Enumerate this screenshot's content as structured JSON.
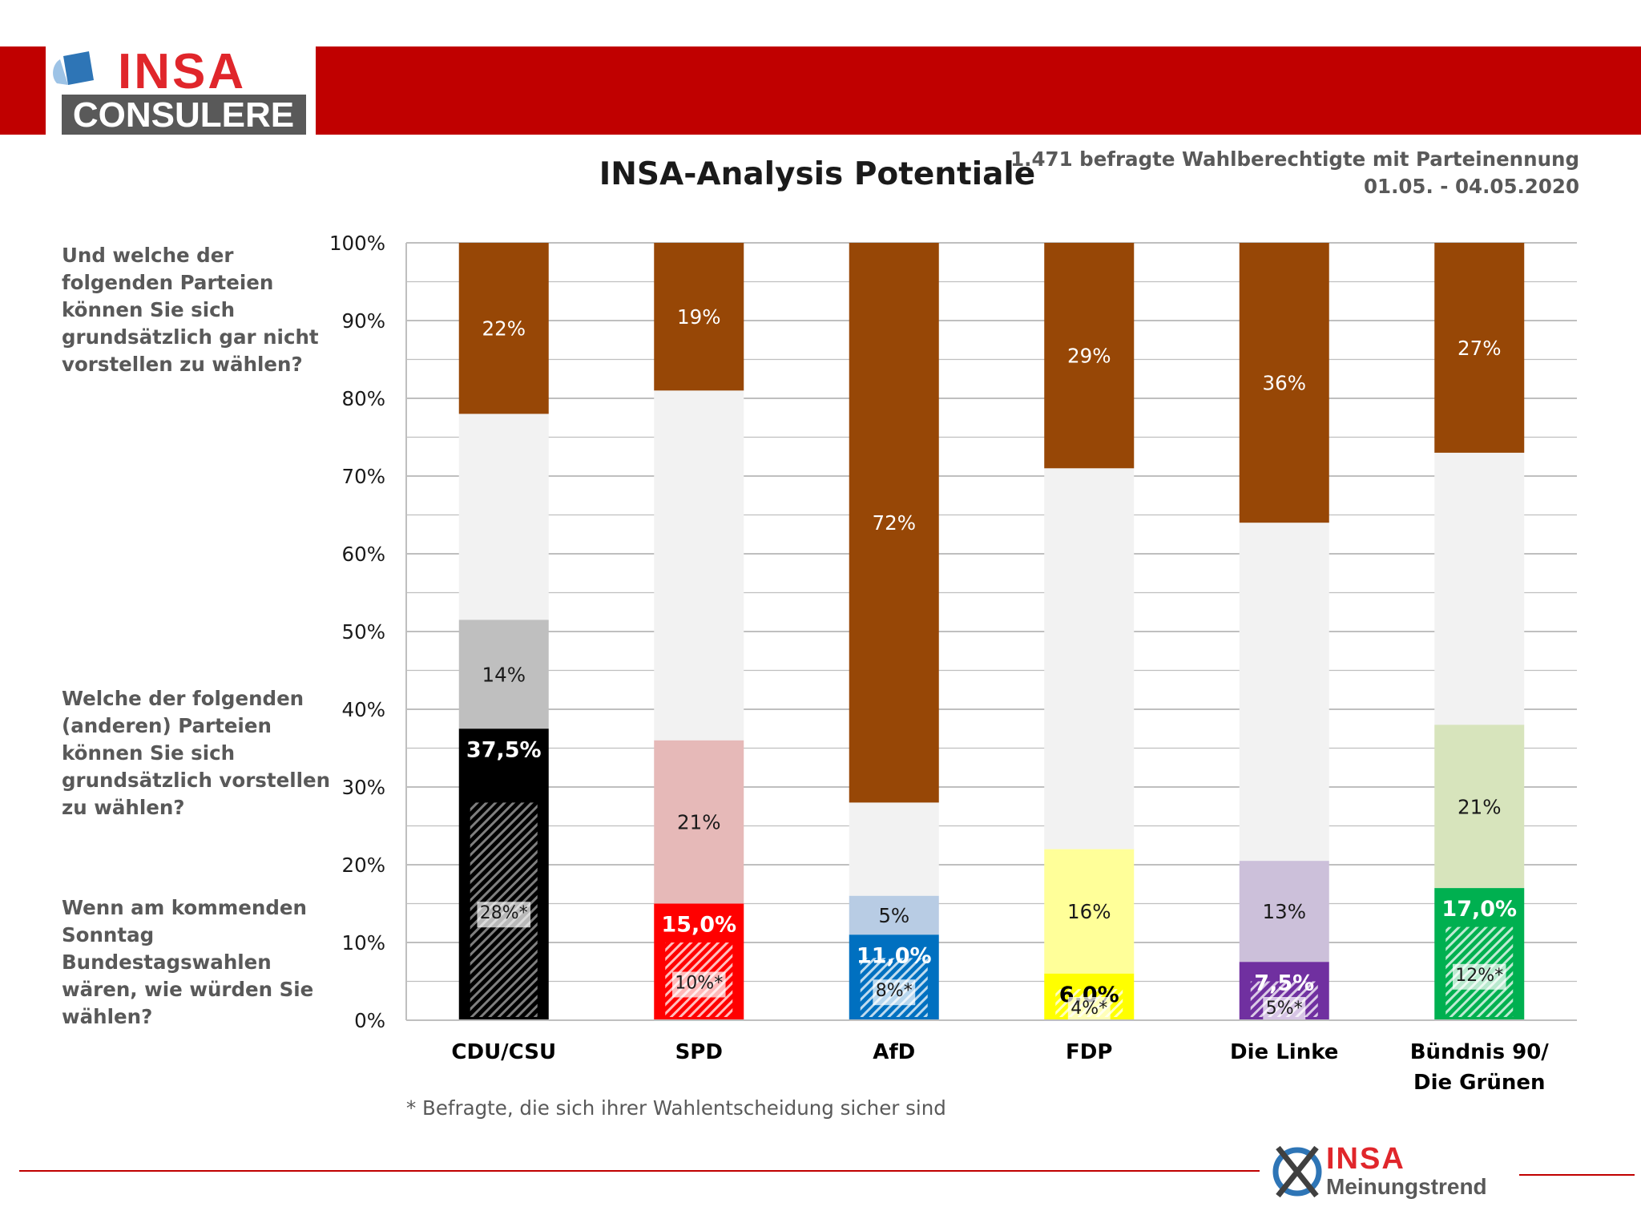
{
  "header": {
    "logo_primary": "INSA",
    "logo_secondary": "CONSULERE"
  },
  "title": "INSA-Analysis Potentiale",
  "meta": {
    "respondents": "1.471 befragte Wahlberechtigte mit Parteinennung",
    "date_range": "01.05. - 04.05.2020"
  },
  "questions": {
    "not_vote": "Und welche der folgenden Parteien können Sie sich grundsätzlich gar nicht vorstellen zu wählen?",
    "could_vote": "Welche der folgenden (anderen) Parteien können Sie sich grundsätzlich vorstellen zu wählen?",
    "sunday": "Wenn am kommenden Sonntag Bundestagswahlen wären, wie würden Sie wählen?"
  },
  "footnote": "* Befragte, die sich ihrer Wahlentscheidung sicher sind",
  "footer": {
    "logo_primary": "INSA",
    "logo_secondary": "Meinungstrend"
  },
  "chart_data": {
    "type": "bar",
    "stacked": true,
    "ylim": [
      0,
      100
    ],
    "yticks": [
      "0%",
      "10%",
      "20%",
      "30%",
      "40%",
      "50%",
      "60%",
      "70%",
      "80%",
      "90%",
      "100%"
    ],
    "grid": true,
    "categories": [
      "CDU/CSU",
      "SPD",
      "AfD",
      "FDP",
      "Die Linke",
      "Bündnis 90/ Die Grünen"
    ],
    "colors": {
      "vote": [
        "#000000",
        "#ff0000",
        "#0070c0",
        "#ffff00",
        "#7030a0",
        "#00b050"
      ],
      "could": [
        "#bfbfbf",
        "#e6b9b8",
        "#b8cce4",
        "#ffff99",
        "#ccc0da",
        "#d7e4bc"
      ],
      "undecided": "#f2f2f2",
      "not": "#974706"
    },
    "series": [
      {
        "key": "vote",
        "values": [
          37.5,
          15.0,
          11.0,
          6.0,
          7.5,
          17.0
        ],
        "labels": [
          "37,5%",
          "15,0%",
          "11,0%",
          "6,0%",
          "7,5%",
          "17,0%"
        ]
      },
      {
        "key": "sure",
        "values": [
          28,
          10,
          8,
          4,
          5,
          12
        ],
        "labels": [
          "28%*",
          "10%*",
          "8%*",
          "4%*",
          "5%*",
          "12%*"
        ]
      },
      {
        "key": "could",
        "values": [
          14,
          21,
          5,
          16,
          13,
          21
        ],
        "labels": [
          "14%",
          "21%",
          "5%",
          "16%",
          "13%",
          "21%"
        ]
      },
      {
        "key": "not",
        "values": [
          22,
          19,
          72,
          29,
          36,
          27
        ],
        "labels": [
          "22%",
          "19%",
          "72%",
          "29%",
          "36%",
          "27%"
        ]
      }
    ]
  }
}
